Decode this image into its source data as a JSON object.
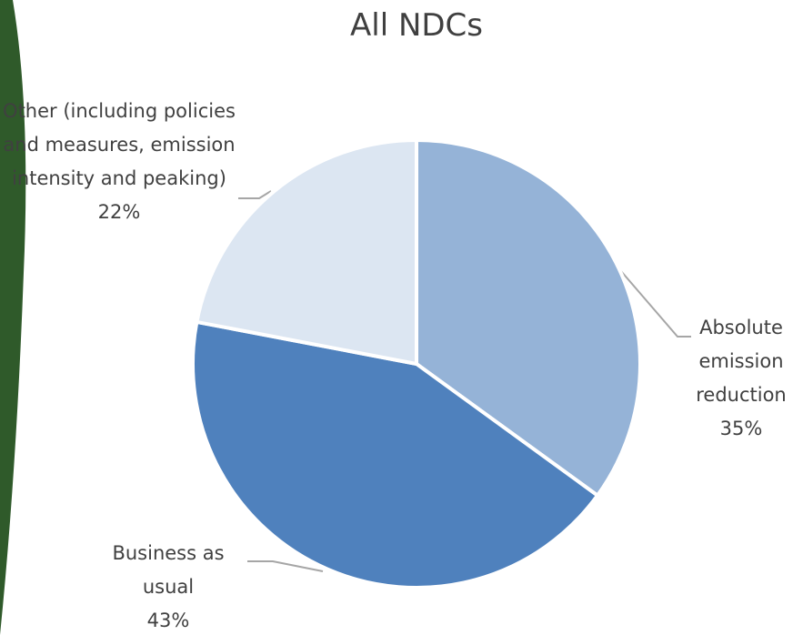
{
  "chart_data": {
    "type": "pie",
    "title": "All NDCs",
    "categories": [
      "Absolute emission reduction",
      "Business as usual",
      "Other (including policies and measures, emission intensity and peaking)"
    ],
    "values": [
      35,
      43,
      22
    ],
    "value_labels": [
      "35%",
      "43%",
      "22%"
    ],
    "colors": [
      "#95b3d7",
      "#4f81bd",
      "#dce6f2"
    ]
  }
}
